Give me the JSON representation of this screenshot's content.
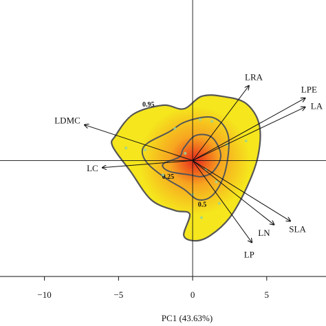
{
  "chart_data": {
    "type": "scatter",
    "subtype": "pca-biplot-with-density-contours",
    "title": "",
    "xlabel": "PC1 (43.63%)",
    "ylabel": "",
    "xlim": [
      -13,
      9
    ],
    "ylim": [
      -6.5,
      9
    ],
    "x_ticks": [
      -10,
      -5,
      0,
      5
    ],
    "x_tick_labels": [
      "−10",
      "−5",
      "0",
      "5"
    ],
    "reference_lines": {
      "x": 0,
      "y": 0
    },
    "grid": false,
    "legend": "none",
    "contour_levels": [
      {
        "label": "0.95",
        "points": [
          [
            -5.2,
            1.4
          ],
          [
            -4.0,
            2.6
          ],
          [
            -2.0,
            3.1
          ],
          [
            -0.6,
            2.9
          ],
          [
            0.6,
            3.6
          ],
          [
            2.0,
            3.6
          ],
          [
            3.6,
            3.2
          ],
          [
            4.5,
            2.0
          ],
          [
            4.4,
            0.2
          ],
          [
            3.6,
            -1.6
          ],
          [
            2.5,
            -3.2
          ],
          [
            1.2,
            -4.2
          ],
          [
            0.2,
            -4.5
          ],
          [
            -0.6,
            -4.2
          ],
          [
            -0.2,
            -3.0
          ],
          [
            -1.2,
            -2.8
          ],
          [
            -2.8,
            -2.2
          ],
          [
            -4.2,
            -0.6
          ],
          [
            -5.4,
            0.8
          ]
        ]
      },
      {
        "label": "0.5",
        "points": [
          [
            -3.0,
            1.0
          ],
          [
            -1.6,
            1.6
          ],
          [
            -0.4,
            2.2
          ],
          [
            1.4,
            2.4
          ],
          [
            2.4,
            1.4
          ],
          [
            2.2,
            -0.6
          ],
          [
            1.4,
            -1.9
          ],
          [
            0.4,
            -2.2
          ],
          [
            -0.6,
            -1.6
          ],
          [
            -1.8,
            -1.0
          ],
          [
            -3.0,
            -0.2
          ],
          [
            -3.4,
            0.5
          ]
        ]
      },
      {
        "label": "0.25",
        "points": [
          [
            -0.6,
            0.7
          ],
          [
            0.2,
            1.4
          ],
          [
            1.3,
            1.3
          ],
          [
            1.9,
            0.3
          ],
          [
            1.4,
            -0.6
          ],
          [
            0.6,
            -0.9
          ],
          [
            -0.2,
            -0.8
          ],
          [
            -1.6,
            -0.6
          ],
          [
            -2.0,
            -0.2
          ],
          [
            -0.9,
            0.2
          ]
        ]
      }
    ],
    "points": [
      {
        "x": -4.5,
        "y": 0.7
      },
      {
        "x": -3.2,
        "y": 0.6
      },
      {
        "x": -2.0,
        "y": -0.8
      },
      {
        "x": -1.2,
        "y": 1.8
      },
      {
        "x": 0.5,
        "y": 2.3
      },
      {
        "x": 1.3,
        "y": 2.2
      },
      {
        "x": 2.3,
        "y": 0.9
      },
      {
        "x": 3.6,
        "y": 1.1
      },
      {
        "x": 1.6,
        "y": -1.2
      },
      {
        "x": 0.9,
        "y": -0.5
      },
      {
        "x": 0.6,
        "y": -3.2
      },
      {
        "x": -0.5,
        "y": 0.4
      },
      {
        "x": 0.0,
        "y": -1.9
      },
      {
        "x": 1.8,
        "y": -2.4
      }
    ],
    "loadings": [
      {
        "name": "LRA",
        "x": 3.8,
        "y": 4.2
      },
      {
        "name": "LPE",
        "x": 7.6,
        "y": 3.5
      },
      {
        "name": "LA",
        "x": 7.6,
        "y": 3.0
      },
      {
        "name": "LDMC",
        "x": -7.3,
        "y": 2.0
      },
      {
        "name": "LC",
        "x": -6.1,
        "y": -0.4
      },
      {
        "name": "SLA",
        "x": 6.6,
        "y": -3.4
      },
      {
        "name": "LN",
        "x": 5.5,
        "y": -3.6
      },
      {
        "name": "LP",
        "x": 4.0,
        "y": -4.6
      }
    ]
  },
  "colors": {
    "density_outer": "#f5e61d",
    "density_mid": "#f7a520",
    "density_core": "#e8281c",
    "contour": "#555555",
    "axis": "#111111",
    "points": "#9ad39a"
  }
}
